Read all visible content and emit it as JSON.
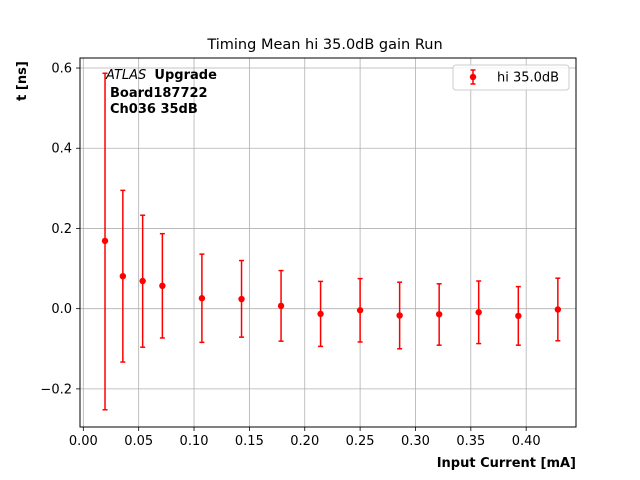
{
  "chart_data": {
    "type": "scatter",
    "title": "Timing Mean hi 35.0dB gain Run",
    "xlabel": "Input Current [mA]",
    "ylabel": "t [ns]",
    "xlim": [
      -0.003,
      0.445
    ],
    "ylim": [
      -0.295,
      0.625
    ],
    "xticks": [
      0.0,
      0.05,
      0.1,
      0.15,
      0.2,
      0.25,
      0.3,
      0.35,
      0.4
    ],
    "xtick_labels": [
      "0.00",
      "0.05",
      "0.10",
      "0.15",
      "0.20",
      "0.25",
      "0.30",
      "0.35",
      "0.40"
    ],
    "yticks": [
      -0.2,
      0.0,
      0.2,
      0.4,
      0.6
    ],
    "ytick_labels": [
      "−0.2",
      "0.0",
      "0.2",
      "0.4",
      "0.6"
    ],
    "grid": true,
    "legend_position": "top-right",
    "annotation": {
      "italic": "ATLAS",
      "bold": "Upgrade",
      "line2": "Board187722",
      "line3": "Ch036 35dB"
    },
    "series": [
      {
        "name": "hi 35.0dB",
        "color": "#ff0000",
        "marker": "circle",
        "points": [
          {
            "x": 0.0196,
            "y": 0.169,
            "err_low": -0.252,
            "err_high": 0.587
          },
          {
            "x": 0.0357,
            "y": 0.081,
            "err_low": -0.133,
            "err_high": 0.295
          },
          {
            "x": 0.0536,
            "y": 0.069,
            "err_low": -0.096,
            "err_high": 0.233
          },
          {
            "x": 0.0714,
            "y": 0.057,
            "err_low": -0.073,
            "err_high": 0.187
          },
          {
            "x": 0.1071,
            "y": 0.026,
            "err_low": -0.084,
            "err_high": 0.136
          },
          {
            "x": 0.1429,
            "y": 0.024,
            "err_low": -0.071,
            "err_high": 0.12
          },
          {
            "x": 0.1786,
            "y": 0.007,
            "err_low": -0.081,
            "err_high": 0.095
          },
          {
            "x": 0.2143,
            "y": -0.013,
            "err_low": -0.094,
            "err_high": 0.068
          },
          {
            "x": 0.25,
            "y": -0.004,
            "err_low": -0.083,
            "err_high": 0.075
          },
          {
            "x": 0.2857,
            "y": -0.017,
            "err_low": -0.1,
            "err_high": 0.066
          },
          {
            "x": 0.3214,
            "y": -0.014,
            "err_low": -0.091,
            "err_high": 0.062
          },
          {
            "x": 0.3571,
            "y": -0.009,
            "err_low": -0.087,
            "err_high": 0.069
          },
          {
            "x": 0.3929,
            "y": -0.018,
            "err_low": -0.091,
            "err_high": 0.055
          },
          {
            "x": 0.4286,
            "y": -0.002,
            "err_low": -0.08,
            "err_high": 0.076
          }
        ]
      }
    ]
  }
}
